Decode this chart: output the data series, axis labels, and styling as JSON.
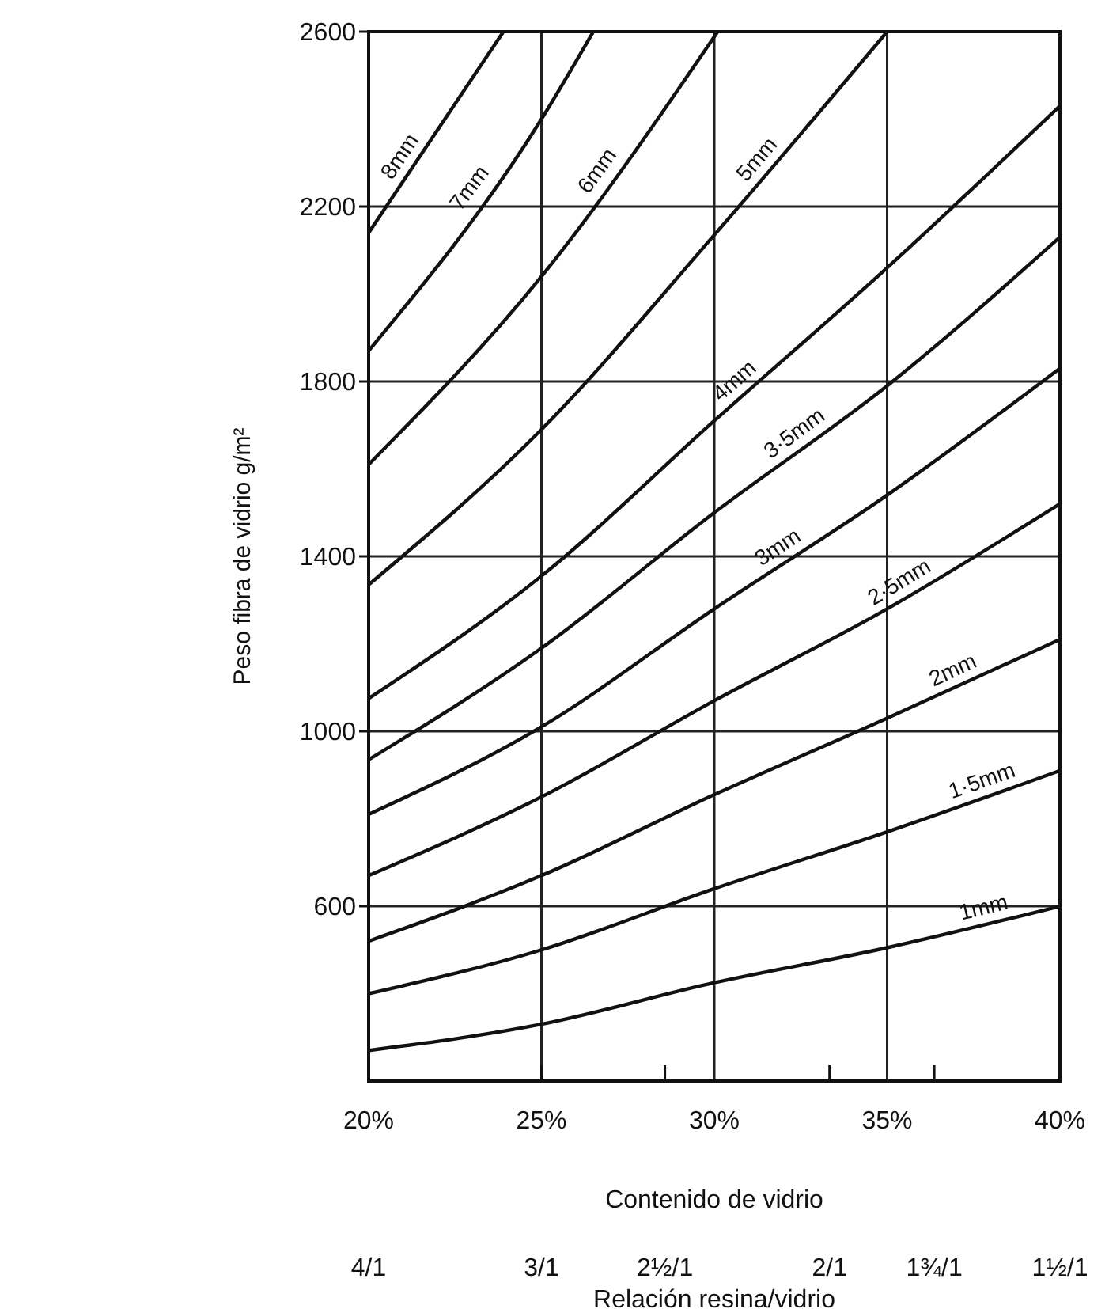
{
  "chart_data": {
    "type": "line",
    "xlabel": "Contenido de vidrio",
    "ylabel": "Peso fibra de vidrio g/m²",
    "xlim": [
      20,
      40
    ],
    "xticks": [
      {
        "value": 20,
        "label": "20%"
      },
      {
        "value": 25,
        "label": "25%"
      },
      {
        "value": 30,
        "label": "30%"
      },
      {
        "value": 35,
        "label": "35%"
      },
      {
        "value": 40,
        "label": "40%"
      }
    ],
    "ylim": [
      200,
      2600
    ],
    "yticks": [
      600,
      1000,
      1400,
      1800,
      2200,
      2600
    ],
    "annotations": [
      "4/1",
      "3/1",
      "2½/1",
      "2/1",
      "1¾/1",
      "1½/1",
      "Relación resina/vidrio"
    ],
    "grid": true,
    "marker": "none",
    "line_style": "solid",
    "series": [
      {
        "name": "8mm",
        "color": "#111111",
        "x": [
          20,
          23.9
        ],
        "values": [
          2140,
          2600
        ]
      },
      {
        "name": "7mm",
        "color": "#111111",
        "x": [
          20,
          25,
          26.5
        ],
        "values": [
          1870,
          2400,
          2600
        ]
      },
      {
        "name": "6mm",
        "color": "#111111",
        "x": [
          20,
          25,
          30.1
        ],
        "values": [
          1610,
          2040,
          2600
        ]
      },
      {
        "name": "5mm",
        "color": "#111111",
        "x": [
          20,
          25,
          30,
          35
        ],
        "values": [
          1335,
          1690,
          2135,
          2600
        ]
      },
      {
        "name": "4mm",
        "color": "#111111",
        "x": [
          20,
          25,
          30,
          35,
          40
        ],
        "values": [
          1075,
          1355,
          1710,
          2060,
          2430
        ]
      },
      {
        "name": "3·5mm",
        "color": "#111111",
        "x": [
          20,
          25,
          30,
          35,
          40
        ],
        "values": [
          935,
          1190,
          1500,
          1790,
          2130
        ]
      },
      {
        "name": "3mm",
        "color": "#111111",
        "x": [
          20,
          25,
          30,
          35,
          40
        ],
        "values": [
          810,
          1010,
          1280,
          1540,
          1830
        ]
      },
      {
        "name": "2·5mm",
        "color": "#111111",
        "x": [
          20,
          25,
          30,
          35,
          40
        ],
        "values": [
          670,
          850,
          1070,
          1280,
          1520
        ]
      },
      {
        "name": "2mm",
        "color": "#111111",
        "x": [
          20,
          25,
          30,
          35,
          40
        ],
        "values": [
          520,
          670,
          855,
          1030,
          1210
        ]
      },
      {
        "name": "1·5mm",
        "color": "#111111",
        "x": [
          20,
          25,
          30,
          35,
          40
        ],
        "values": [
          400,
          500,
          640,
          770,
          910
        ]
      },
      {
        "name": "1mm",
        "color": "#111111",
        "x": [
          20,
          25,
          30,
          35,
          40
        ],
        "values": [
          270,
          330,
          425,
          505,
          600
        ]
      }
    ]
  }
}
